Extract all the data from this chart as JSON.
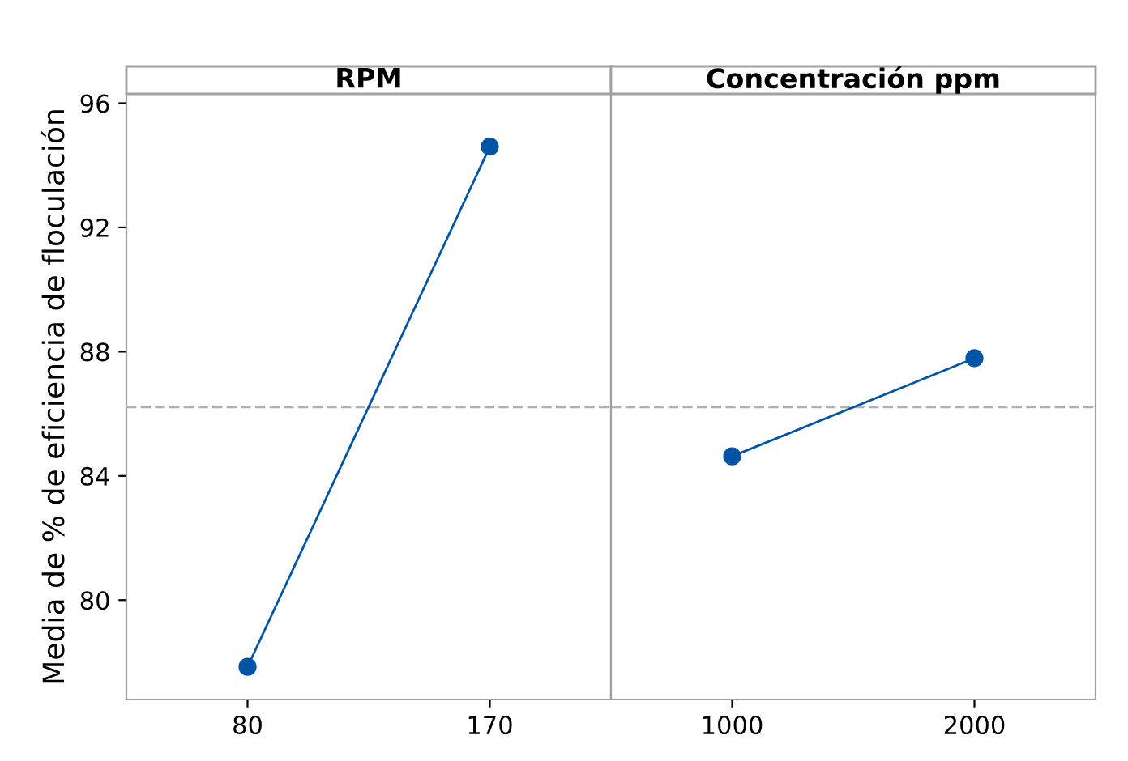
{
  "chart_data": [
    {
      "type": "line",
      "title": "RPM",
      "ylabel": "Media de % de eficiencia de floculación",
      "categories": [
        "80",
        "170"
      ],
      "series": [
        {
          "color": "#0054a6",
          "values": [
            77.85,
            94.6
          ]
        }
      ],
      "ylim": [
        76.8,
        96.3
      ],
      "yticks": [
        80,
        84,
        88,
        92,
        96
      ],
      "marker": "circle",
      "line_style": "solid",
      "grid": false,
      "ref_lines": [
        {
          "axis": "y",
          "value": 86.22,
          "color": "#b0b0b0",
          "line_style": "dashed"
        }
      ]
    },
    {
      "type": "line",
      "title": "Concentración ppm",
      "categories": [
        "1000",
        "2000"
      ],
      "series": [
        {
          "color": "#0054a6",
          "values": [
            84.63,
            87.79
          ]
        }
      ],
      "ylim": [
        76.8,
        96.3
      ],
      "yticks": [
        80,
        84,
        88,
        92,
        96
      ],
      "tick_labels": "x",
      "marker": "circle",
      "line_style": "solid",
      "grid": false,
      "ref_lines": [
        {
          "axis": "y",
          "value": 86.22,
          "color": "#b0b0b0",
          "line_style": "dashed"
        }
      ]
    }
  ]
}
